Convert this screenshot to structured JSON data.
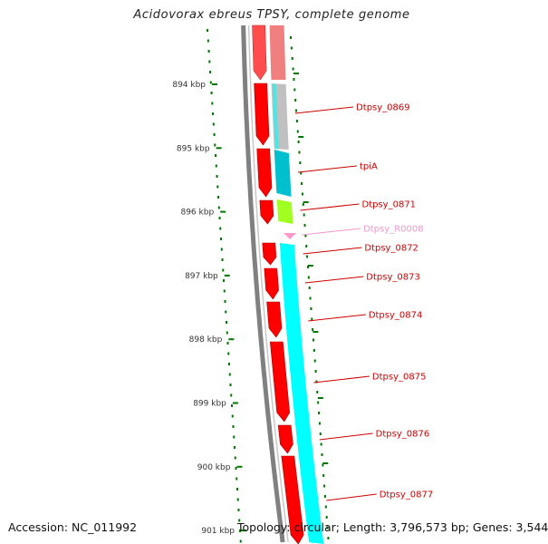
{
  "title": "Acidovorax ebreus TPSY, complete genome",
  "footer": {
    "accession": "Accession: NC_011992",
    "summary": "Topology: circular; Length: 3,796,573 bp; Genes: 3,544"
  },
  "scale_ticks": [
    "894 kbp",
    "895 kbp",
    "896 kbp",
    "897 kbp",
    "898 kbp",
    "899 kbp",
    "900 kbp",
    "901 kbp"
  ],
  "genes": [
    {
      "name": "Dtpsy_0869",
      "color": "#cc0000"
    },
    {
      "name": "tpiA",
      "color": "#cc0000"
    },
    {
      "name": "Dtpsy_0871",
      "color": "#cc0000"
    },
    {
      "name": "Dtpsy_R0008",
      "color": "#ee99cc"
    },
    {
      "name": "Dtpsy_0872",
      "color": "#cc0000"
    },
    {
      "name": "Dtpsy_0873",
      "color": "#cc0000"
    },
    {
      "name": "Dtpsy_0874",
      "color": "#cc0000"
    },
    {
      "name": "Dtpsy_0875",
      "color": "#cc0000"
    },
    {
      "name": "Dtpsy_0876",
      "color": "#cc0000"
    },
    {
      "name": "Dtpsy_0877",
      "color": "#cc0000"
    }
  ],
  "colors": {
    "backbone": "#808080",
    "cds": "#ff0000",
    "rna": "#ff99cc",
    "cog_cyan": "#00ffff",
    "cog_teal": "#00c0d0",
    "cog_grey": "#c0c0c0",
    "cog_green": "#a0ff20",
    "cog_pink": "#f08080",
    "gc_skew": "#007700"
  }
}
